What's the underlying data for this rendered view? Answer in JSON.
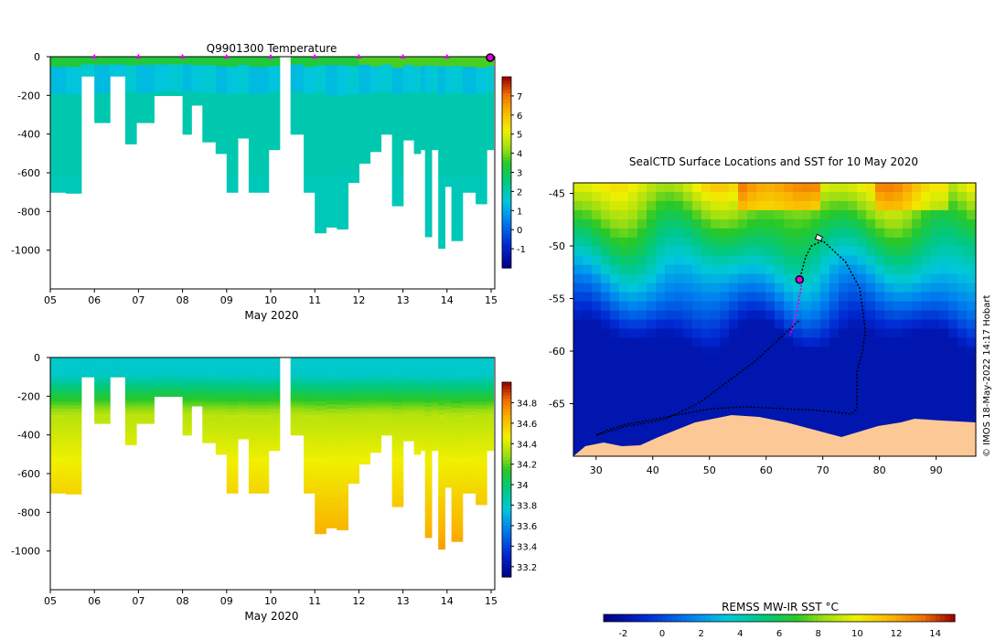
{
  "chart_data": [
    {
      "type": "heatmap",
      "title": "Q9901300  Temperature",
      "xlabel": "May 2020",
      "xticks": [
        "05",
        "06",
        "07",
        "08",
        "09",
        "10",
        "11",
        "12",
        "13",
        "14",
        "15"
      ],
      "xlim": [
        5,
        15.05
      ],
      "ylim": [
        0,
        -1200
      ],
      "yticks": [
        0,
        -200,
        -400,
        -600,
        -800,
        -1000
      ],
      "colorbar": {
        "ticks": [
          -1,
          0,
          1,
          2,
          3,
          4,
          5,
          6,
          7
        ],
        "range": [
          -2,
          8
        ]
      },
      "surface_color": 3.3,
      "profile_times": [
        5.0,
        5.35,
        5.7,
        6.0,
        6.35,
        6.7,
        6.95,
        7.35,
        7.7,
        8.0,
        8.2,
        8.45,
        8.75,
        9.0,
        9.25,
        9.5,
        9.95,
        10.2,
        10.45,
        10.75,
        11.0,
        11.25,
        11.5,
        11.75,
        12.0,
        12.25,
        12.5,
        12.75,
        13.0,
        13.25,
        13.4,
        13.5,
        13.65,
        13.8,
        13.95,
        14.1,
        14.35,
        14.65,
        14.9
      ],
      "profile_depths": [
        700,
        705,
        100,
        340,
        100,
        450,
        340,
        200,
        200,
        400,
        250,
        440,
        500,
        700,
        420,
        700,
        480,
        -1,
        400,
        700,
        910,
        880,
        890,
        650,
        550,
        490,
        400,
        770,
        430,
        500,
        480,
        930,
        480,
        990,
        670,
        950,
        700,
        760,
        480
      ],
      "deep_color": 2.0,
      "mid_color": 1.3,
      "markers_x": [
        6,
        7,
        8,
        9,
        10,
        11,
        12,
        13,
        14
      ],
      "end_marker_x": 15.0
    },
    {
      "type": "heatmap",
      "title": "",
      "xlabel": "May 2020",
      "xticks": [
        "05",
        "06",
        "07",
        "08",
        "09",
        "10",
        "11",
        "12",
        "13",
        "14",
        "15"
      ],
      "ylim": [
        0,
        -1200
      ],
      "yticks": [
        0,
        -200,
        -400,
        -600,
        -800,
        -1000
      ],
      "colorbar": {
        "ticks": [
          33.2,
          33.4,
          33.6,
          33.8,
          34,
          34.2,
          34.4,
          34.6,
          34.8
        ],
        "range": [
          33.1,
          35.0
        ]
      },
      "surface_value": 33.8,
      "deep_value": 34.72,
      "halocline_depth": 230
    },
    {
      "type": "scatter",
      "title": "SealCTD Surface Locations and SST for 10 May 2020",
      "xticks": [
        30,
        40,
        50,
        60,
        70,
        80,
        90
      ],
      "yticks": [
        -45,
        -50,
        -55,
        -60,
        -65
      ],
      "xlim": [
        26,
        97
      ],
      "ylim": [
        -44,
        -70
      ],
      "track_lon": [
        66,
        66.5,
        67,
        68,
        70,
        72,
        74,
        75,
        76.5,
        77,
        77.5,
        77,
        76,
        76,
        76,
        75,
        72,
        68,
        64,
        60,
        56,
        50,
        45,
        40,
        35,
        32,
        30,
        35,
        42,
        48,
        53,
        58,
        62,
        66
      ],
      "track_lat": [
        -53,
        -52,
        -51,
        -50,
        -49.5,
        -50.5,
        -51.5,
        -52.5,
        -54,
        -56,
        -58,
        -60,
        -62,
        -64,
        -65.5,
        -66,
        -65.8,
        -65.6,
        -65.5,
        -65.4,
        -65.3,
        -65.5,
        -66,
        -66.5,
        -67,
        -67.5,
        -68,
        -67.2,
        -66.5,
        -65,
        -63,
        -61,
        -59,
        -57
      ],
      "recent_lon": [
        66,
        66.2,
        65.8,
        65.5,
        65,
        64.6,
        64.2
      ],
      "recent_lat": [
        -53,
        -54,
        -55,
        -56,
        -57,
        -58,
        -58.5
      ],
      "current_position": {
        "lon": 65.9,
        "lat": -53.2
      },
      "colorbar": {
        "label": "REMSS MW-IR SST °C",
        "ticks": [
          -2,
          0,
          2,
          4,
          6,
          8,
          10,
          12,
          14
        ],
        "range": [
          -3,
          15
        ]
      },
      "credit": "© IMOS 18-May-2022 14:17 Hobart"
    }
  ]
}
